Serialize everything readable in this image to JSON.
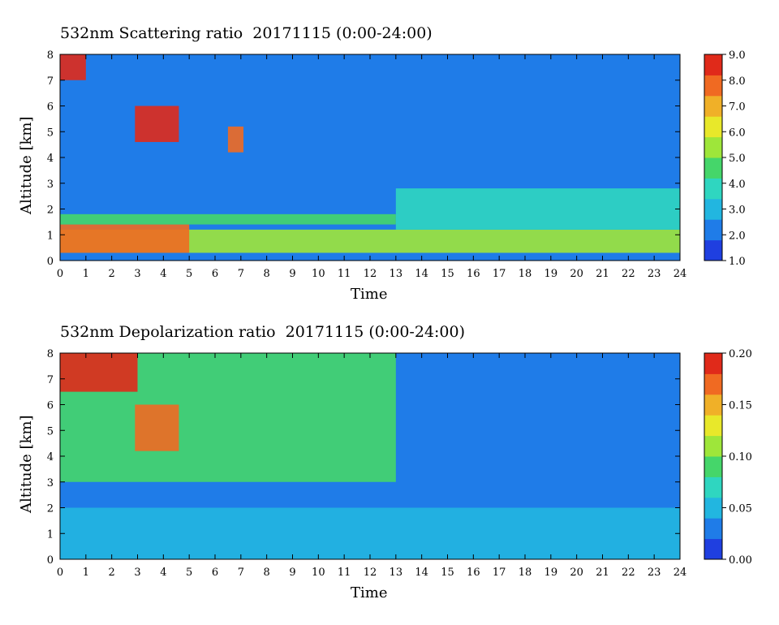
{
  "colors": {
    "colormap": [
      "#1f3fe0",
      "#1f7ce8",
      "#22b6e0",
      "#2fd6c0",
      "#45d66a",
      "#9ee63a",
      "#e8e82a",
      "#f0b028",
      "#f06a22",
      "#e02a1a"
    ]
  },
  "chart_data": [
    {
      "type": "heatmap",
      "title": "532nm Scattering ratio  20171115 (0:00-24:00)",
      "xlabel": "Time",
      "ylabel": "Altitude [km]",
      "x_ticks": [
        "0",
        "1",
        "2",
        "3",
        "4",
        "5",
        "6",
        "7",
        "8",
        "9",
        "10",
        "11",
        "12",
        "13",
        "14",
        "15",
        "16",
        "17",
        "18",
        "19",
        "20",
        "21",
        "22",
        "23",
        "24"
      ],
      "y_ticks": [
        "0",
        "1",
        "2",
        "3",
        "4",
        "5",
        "6",
        "7",
        "8"
      ],
      "xlim": [
        0,
        24
      ],
      "ylim": [
        0,
        8
      ],
      "colorbar": {
        "range": [
          1.0,
          9.0
        ],
        "ticks": [
          "1.0",
          "2.0",
          "3.0",
          "4.0",
          "5.0",
          "6.0",
          "7.0",
          "8.0",
          "9.0"
        ]
      },
      "background_value": 2.0,
      "features": [
        {
          "desc": "aerosol layer",
          "x": [
            0,
            24
          ],
          "y": [
            0.3,
            1.2
          ],
          "value": 5.5
        },
        {
          "desc": "dense near-surface aerosol",
          "x": [
            0,
            5
          ],
          "y": [
            0.3,
            1.4
          ],
          "value": 8.0
        },
        {
          "desc": "boundary layer top",
          "x": [
            0,
            13
          ],
          "y": [
            1.4,
            1.8
          ],
          "value": 4.5
        },
        {
          "desc": "aerosol 13-24h",
          "x": [
            13,
            24
          ],
          "y": [
            1.2,
            2.8
          ],
          "value": 3.8
        },
        {
          "desc": "cloud",
          "x": [
            2.9,
            4.6
          ],
          "y": [
            4.6,
            6.0
          ],
          "value": 9.0
        },
        {
          "desc": "cloud",
          "x": [
            6.5,
            7.1
          ],
          "y": [
            4.2,
            5.2
          ],
          "value": 8.0
        },
        {
          "desc": "cloud",
          "x": [
            0,
            1.0
          ],
          "y": [
            7.0,
            8.0
          ],
          "value": 9.0
        }
      ]
    },
    {
      "type": "heatmap",
      "title": "532nm Depolarization ratio  20171115 (0:00-24:00)",
      "xlabel": "Time",
      "ylabel": "Altitude [km]",
      "x_ticks": [
        "0",
        "1",
        "2",
        "3",
        "4",
        "5",
        "6",
        "7",
        "8",
        "9",
        "10",
        "11",
        "12",
        "13",
        "14",
        "15",
        "16",
        "17",
        "18",
        "19",
        "20",
        "21",
        "22",
        "23",
        "24"
      ],
      "y_ticks": [
        "0",
        "1",
        "2",
        "3",
        "4",
        "5",
        "6",
        "7",
        "8"
      ],
      "xlim": [
        0,
        24
      ],
      "ylim": [
        0,
        8
      ],
      "colorbar": {
        "range": [
          0.0,
          0.2
        ],
        "ticks": [
          "0.00",
          "0.05",
          "0.10",
          "0.15",
          "0.20"
        ]
      },
      "background_value": 0.03,
      "features": [
        {
          "desc": "lower layer",
          "x": [
            0,
            24
          ],
          "y": [
            0,
            2.0
          ],
          "value": 0.045
        },
        {
          "desc": "upper noisy layer",
          "x": [
            0,
            13
          ],
          "y": [
            3.0,
            8.0
          ],
          "value": 0.09
        },
        {
          "desc": "high depolarization cloud",
          "x": [
            2.9,
            4.6
          ],
          "y": [
            4.2,
            6.0
          ],
          "value": 0.17
        },
        {
          "desc": "high depolarization top",
          "x": [
            0,
            3.0
          ],
          "y": [
            6.5,
            8.0
          ],
          "value": 0.18
        }
      ]
    }
  ]
}
